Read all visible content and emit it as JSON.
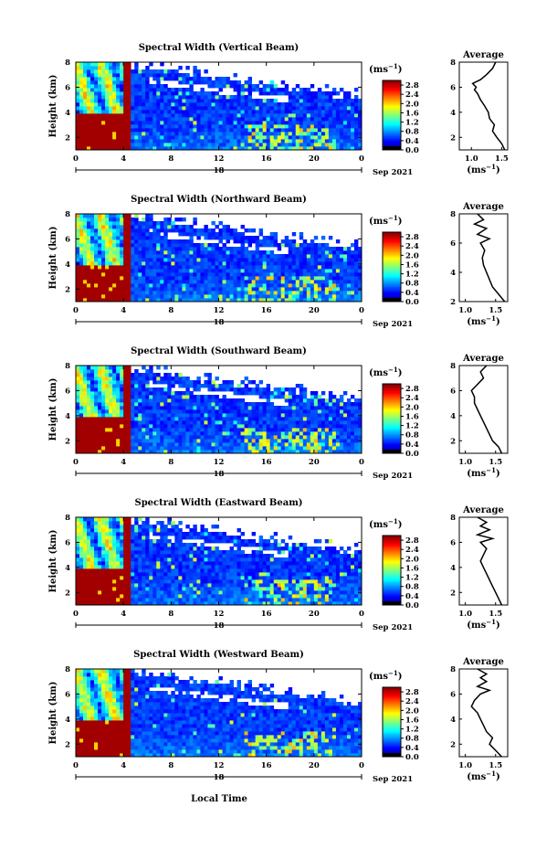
{
  "figure": {
    "xlabel": "Local Time",
    "date_label": "Sep 2021",
    "day_label": "18",
    "ylabel": "Height (km)",
    "unit_label": "(ms",
    "unit_exp": "−1",
    "avg_title": "Average"
  },
  "chart_data": [
    {
      "type": "heatmap",
      "title": "Spectral Width (Vertical Beam)",
      "x_ticks": [
        "0",
        "4",
        "8",
        "12",
        "16",
        "20",
        "0"
      ],
      "xlim": [
        0,
        24
      ],
      "y_ticks": [
        "2",
        "4",
        "6",
        "8"
      ],
      "ylim": [
        1,
        8
      ],
      "colorbar_ticks": [
        "0.0",
        "0.4",
        "0.8",
        "1.2",
        "1.6",
        "2.0",
        "2.4",
        "2.8"
      ],
      "colorbar_range": [
        0.0,
        3.0
      ],
      "average_profile": {
        "x_ticks": [
          "1.0",
          "1.5"
        ],
        "xlim": [
          0.8,
          1.6
        ],
        "y_ticks": [
          "2",
          "4",
          "6",
          "8"
        ],
        "ylim": [
          1,
          8
        ],
        "height": [
          1.0,
          1.5,
          2.0,
          2.5,
          3.0,
          3.5,
          4.0,
          4.5,
          5.0,
          5.5,
          5.8,
          6.0,
          6.3,
          6.6,
          7.0,
          7.5,
          8.0
        ],
        "width": [
          1.55,
          1.5,
          1.42,
          1.35,
          1.38,
          1.3,
          1.28,
          1.22,
          1.15,
          1.1,
          1.05,
          1.08,
          1.02,
          1.15,
          1.25,
          1.35,
          1.4
        ]
      }
    },
    {
      "type": "heatmap",
      "title": "Spectral Width (Northward Beam)",
      "x_ticks": [
        "0",
        "4",
        "8",
        "12",
        "16",
        "20",
        "0"
      ],
      "xlim": [
        0,
        24
      ],
      "y_ticks": [
        "2",
        "4",
        "6",
        "8"
      ],
      "ylim": [
        1,
        8
      ],
      "colorbar_ticks": [
        "0.0",
        "0.4",
        "0.8",
        "1.2",
        "1.6",
        "2.0",
        "2.4",
        "2.8"
      ],
      "colorbar_range": [
        0.0,
        3.0
      ],
      "average_profile": {
        "x_ticks": [
          "1.0",
          "1.5"
        ],
        "xlim": [
          0.9,
          1.7
        ],
        "y_ticks": [
          "2",
          "4",
          "6",
          "8"
        ],
        "ylim": [
          2,
          8
        ],
        "height": [
          2.0,
          2.5,
          3.0,
          3.5,
          4.0,
          4.5,
          5.0,
          5.5,
          6.0,
          6.3,
          6.6,
          7.0,
          7.3,
          7.6,
          8.0
        ],
        "width": [
          1.65,
          1.55,
          1.45,
          1.4,
          1.35,
          1.3,
          1.28,
          1.32,
          1.25,
          1.4,
          1.2,
          1.35,
          1.15,
          1.3,
          1.2
        ]
      }
    },
    {
      "type": "heatmap",
      "title": "Spectral Width (Southward Beam)",
      "x_ticks": [
        "0",
        "4",
        "8",
        "12",
        "16",
        "20",
        "0"
      ],
      "xlim": [
        0,
        24
      ],
      "y_ticks": [
        "2",
        "4",
        "6",
        "8"
      ],
      "ylim": [
        1,
        8
      ],
      "colorbar_ticks": [
        "0.0",
        "0.4",
        "0.8",
        "1.2",
        "1.6",
        "2.0",
        "2.4",
        "2.8"
      ],
      "colorbar_range": [
        0.0,
        3.0
      ],
      "average_profile": {
        "x_ticks": [
          "1.0",
          "1.5"
        ],
        "xlim": [
          0.9,
          1.7
        ],
        "y_ticks": [
          "2",
          "4",
          "6",
          "8"
        ],
        "ylim": [
          1,
          8
        ],
        "height": [
          1.0,
          1.5,
          2.0,
          2.5,
          3.0,
          3.5,
          4.0,
          4.5,
          5.0,
          5.5,
          6.0,
          6.5,
          7.0,
          7.5,
          8.0
        ],
        "width": [
          1.6,
          1.55,
          1.45,
          1.4,
          1.35,
          1.3,
          1.25,
          1.2,
          1.15,
          1.15,
          1.1,
          1.2,
          1.3,
          1.25,
          1.35
        ]
      }
    },
    {
      "type": "heatmap",
      "title": "Spectral Width (Eastward Beam)",
      "x_ticks": [
        "0",
        "4",
        "8",
        "12",
        "16",
        "20",
        "0"
      ],
      "xlim": [
        0,
        24
      ],
      "y_ticks": [
        "2",
        "4",
        "6",
        "8"
      ],
      "ylim": [
        1,
        8
      ],
      "colorbar_ticks": [
        "0.0",
        "0.4",
        "0.8",
        "1.2",
        "1.6",
        "2.0",
        "2.4",
        "2.8"
      ],
      "colorbar_range": [
        0.0,
        3.0
      ],
      "average_profile": {
        "x_ticks": [
          "1.0",
          "1.5"
        ],
        "xlim": [
          0.9,
          1.7
        ],
        "y_ticks": [
          "2",
          "4",
          "6",
          "8"
        ],
        "ylim": [
          1,
          8
        ],
        "height": [
          1.0,
          1.5,
          2.0,
          2.5,
          3.0,
          3.5,
          4.0,
          4.5,
          5.0,
          5.5,
          6.0,
          6.3,
          6.6,
          7.0,
          7.3,
          7.6,
          8.0
        ],
        "width": [
          1.6,
          1.55,
          1.5,
          1.45,
          1.4,
          1.35,
          1.3,
          1.25,
          1.3,
          1.35,
          1.25,
          1.45,
          1.2,
          1.4,
          1.25,
          1.35,
          1.2
        ]
      }
    },
    {
      "type": "heatmap",
      "title": "Spectral Width (Westward Beam)",
      "x_ticks": [
        "0",
        "4",
        "8",
        "12",
        "16",
        "20",
        "0"
      ],
      "xlim": [
        0,
        24
      ],
      "y_ticks": [
        "2",
        "4",
        "6",
        "8"
      ],
      "ylim": [
        1,
        8
      ],
      "colorbar_ticks": [
        "0.0",
        "0.4",
        "0.8",
        "1.2",
        "1.6",
        "2.0",
        "2.4",
        "2.8"
      ],
      "colorbar_range": [
        0.0,
        3.0
      ],
      "average_profile": {
        "x_ticks": [
          "1.0",
          "1.5"
        ],
        "xlim": [
          0.9,
          1.7
        ],
        "y_ticks": [
          "2",
          "4",
          "6",
          "8"
        ],
        "ylim": [
          1,
          8
        ],
        "height": [
          1.0,
          1.5,
          2.0,
          2.5,
          3.0,
          3.5,
          4.0,
          4.5,
          5.0,
          5.5,
          6.0,
          6.3,
          6.6,
          7.0,
          7.3,
          7.6,
          8.0
        ],
        "width": [
          1.6,
          1.5,
          1.4,
          1.45,
          1.35,
          1.3,
          1.25,
          1.2,
          1.1,
          1.15,
          1.25,
          1.4,
          1.2,
          1.35,
          1.25,
          1.35,
          1.2
        ]
      }
    }
  ]
}
